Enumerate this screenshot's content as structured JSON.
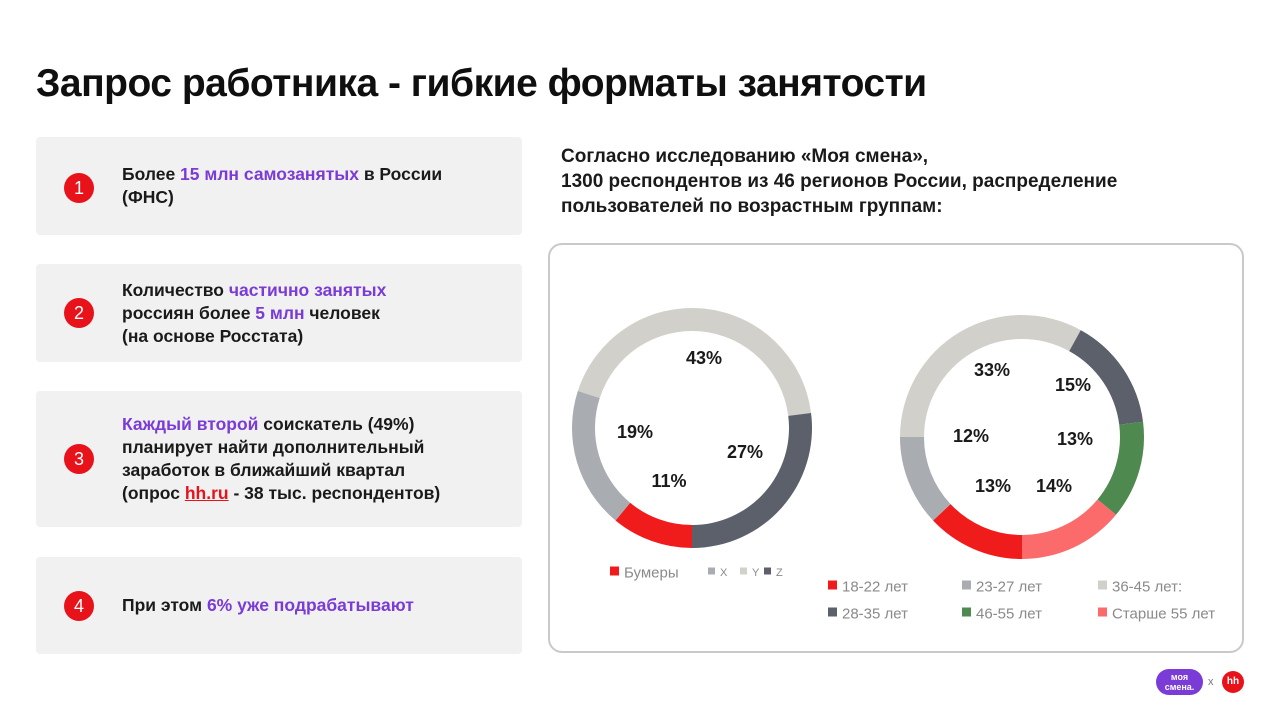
{
  "title": "Запрос работника - гибкие форматы занятости",
  "cards": [
    {
      "num": "1",
      "parts": [
        {
          "t": "Более "
        },
        {
          "t": "15 млн самозанятых",
          "hl": true
        },
        {
          "t": " в России"
        },
        {
          "br": true
        },
        {
          "t": "(ФНС)"
        }
      ]
    },
    {
      "num": "2",
      "parts": [
        {
          "t": "Количество "
        },
        {
          "t": "частично занятых",
          "hl": true
        },
        {
          "br": true
        },
        {
          "t": "россиян более "
        },
        {
          "t": "5 млн",
          "hl": true
        },
        {
          "t": " человек"
        },
        {
          "br": true
        },
        {
          "t": "(на основе Росстата)"
        }
      ]
    },
    {
      "num": "3",
      "parts": [
        {
          "t": "Каждый второй",
          "hl": true
        },
        {
          "t": " соискатель (49%)"
        },
        {
          "br": true
        },
        {
          "t": "планирует найти дополнительный"
        },
        {
          "br": true
        },
        {
          "t": "заработок в ближайший квартал"
        },
        {
          "br": true
        },
        {
          "t": "(опрос "
        },
        {
          "t": "hh.ru",
          "link": true
        },
        {
          "t": " - 38 тыс. респондентов)"
        }
      ]
    },
    {
      "num": "4",
      "parts": [
        {
          "t": "При этом "
        },
        {
          "t": "6% уже подрабатывают",
          "hl": true
        }
      ]
    }
  ],
  "study_text": {
    "line1": "Согласно исследованию «Моя смена»,",
    "line2": "1300 респондентов из 46 регионов России, распределение",
    "line3": "пользователей по возрастным группам:"
  },
  "chart_data": [
    {
      "type": "pie",
      "donut": true,
      "legend_position": "bottom",
      "slices": [
        {
          "label": "Бумеры",
          "value": 11,
          "color": "#f01c1c",
          "value_label": "11%"
        },
        {
          "label": "X",
          "value": 19,
          "color": "#a9acb1",
          "value_label": "19%"
        },
        {
          "label": "Y",
          "value": 43,
          "color": "#d2d0ca",
          "value_label": "43%"
        },
        {
          "label": "Z",
          "value": 27,
          "color": "#5c606b",
          "value_label": "27%"
        }
      ]
    },
    {
      "type": "pie",
      "donut": true,
      "legend_position": "bottom",
      "slices": [
        {
          "label": "18-22 лет",
          "value": 13,
          "color": "#f01c1c",
          "value_label": "13%"
        },
        {
          "label": "23-27 лет",
          "value": 12,
          "color": "#a9acb1",
          "value_label": "12%"
        },
        {
          "label": "36-45 лет:",
          "value": 33,
          "color": "#d2d0ca",
          "value_label": "33%"
        },
        {
          "label": "28-35 лет",
          "value": 15,
          "color": "#5c606b",
          "value_label": "15%"
        },
        {
          "label": "46-55 лет",
          "value": 13,
          "color": "#4e8a4f",
          "value_label": "13%"
        },
        {
          "label": "Старше 55 лет",
          "value": 14,
          "color": "#fb6b6b",
          "value_label": "14%"
        }
      ]
    }
  ],
  "logos": {
    "moya_smena": "моя смена.",
    "separator": "x",
    "hh": "hh"
  }
}
